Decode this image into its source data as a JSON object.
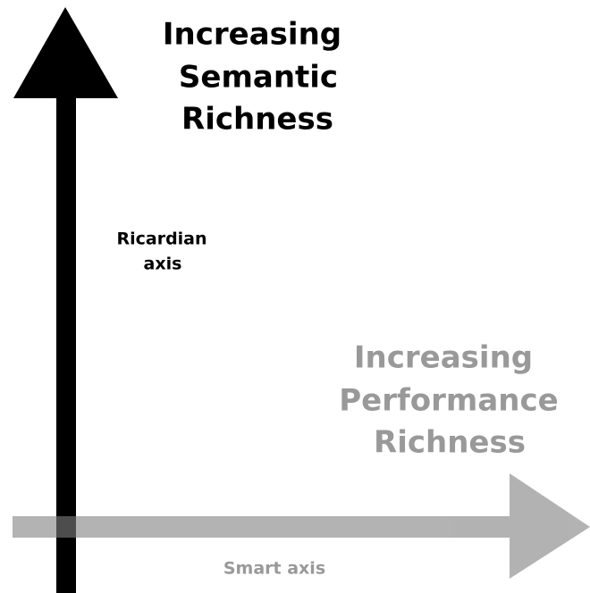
{
  "vertical_axis": {
    "title": [
      "Increasing",
      "Semantic",
      "Richness"
    ],
    "label": [
      "Ricardian",
      "axis"
    ]
  },
  "horizontal_axis": {
    "title": [
      "Increasing",
      "Performance",
      "Richness"
    ],
    "label": "Smart axis"
  }
}
